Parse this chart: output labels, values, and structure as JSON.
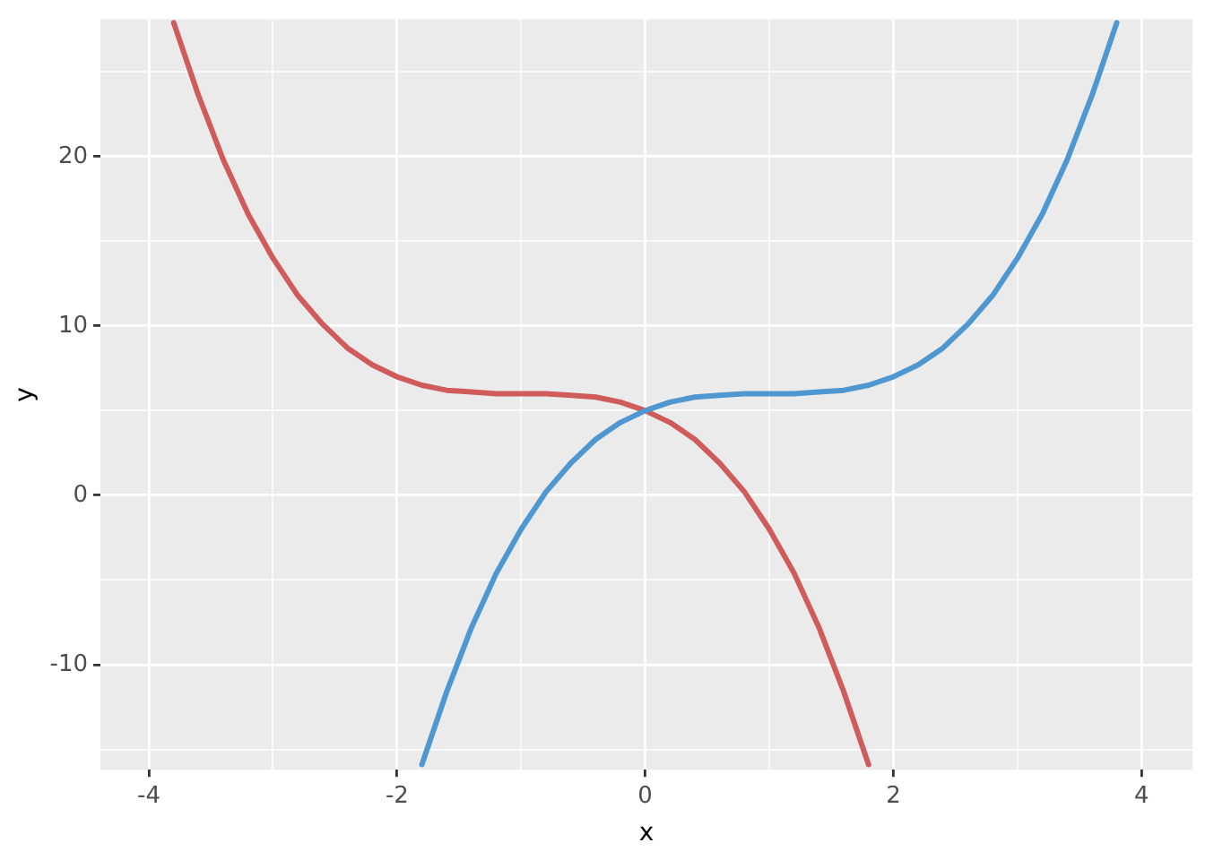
{
  "chart_data": {
    "type": "line",
    "xlabel": "x",
    "ylabel": "y",
    "xlim": [
      -4.39,
      4.41
    ],
    "ylim": [
      -16.2,
      28.1
    ],
    "xticks": [
      -4,
      {
        "value": -3,
        "label": null
      },
      -2,
      {
        "value": -1,
        "label": null
      },
      0,
      {
        "value": 1,
        "label": null
      },
      2,
      {
        "value": 3,
        "label": null
      },
      4
    ],
    "yticks": [
      {
        "value": -15,
        "label": null
      },
      -10,
      {
        "value": -5,
        "label": null
      },
      0,
      {
        "value": 5,
        "label": null
      },
      10,
      {
        "value": 15,
        "label": null
      },
      20,
      {
        "value": 25,
        "label": null
      }
    ],
    "grid": true,
    "marker": "none",
    "line_style": "solid",
    "series": [
      {
        "color": "#4f97d0",
        "x": [
          -1.8,
          -1.6,
          -1.4,
          -1.2,
          -1.0,
          -0.8,
          -0.6,
          -0.4,
          -0.2,
          0,
          0.2,
          0.4,
          0.6,
          0.8,
          1.0,
          1.2,
          1.4,
          1.6,
          1.8,
          2.0,
          2.2,
          2.4,
          2.6,
          2.8,
          3.0,
          3.2,
          3.4,
          3.6,
          3.8
        ],
        "values": [
          -15.9,
          -11.6,
          -7.8,
          -4.6,
          -2,
          0.2,
          1.9,
          3.3,
          4.3,
          5,
          5.5,
          5.8,
          5.9,
          6,
          6,
          6,
          6.1,
          6.2,
          6.5,
          7,
          7.7,
          8.7,
          10.1,
          11.8,
          14,
          16.6,
          19.8,
          23.6,
          27.9
        ]
      },
      {
        "color": "#d05b5b",
        "x": [
          -3.8,
          -3.6,
          -3.4,
          -3.2,
          -3.0,
          -2.8,
          -2.6,
          -2.4,
          -2.2,
          -2.0,
          -1.8,
          -1.6,
          -1.4,
          -1.2,
          -1.0,
          -0.8,
          -0.6,
          -0.4,
          -0.2,
          0,
          0.2,
          0.4,
          0.6,
          0.8,
          1.0,
          1.2,
          1.4,
          1.6,
          1.8
        ],
        "values": [
          27.9,
          23.6,
          19.8,
          16.6,
          14,
          11.8,
          10.1,
          8.7,
          7.7,
          7,
          6.5,
          6.2,
          6.1,
          6,
          6,
          6,
          5.9,
          5.8,
          5.5,
          5,
          4.3,
          3.3,
          1.9,
          0.2,
          -2,
          -4.6,
          -7.8,
          -11.6,
          -15.9
        ]
      }
    ]
  }
}
